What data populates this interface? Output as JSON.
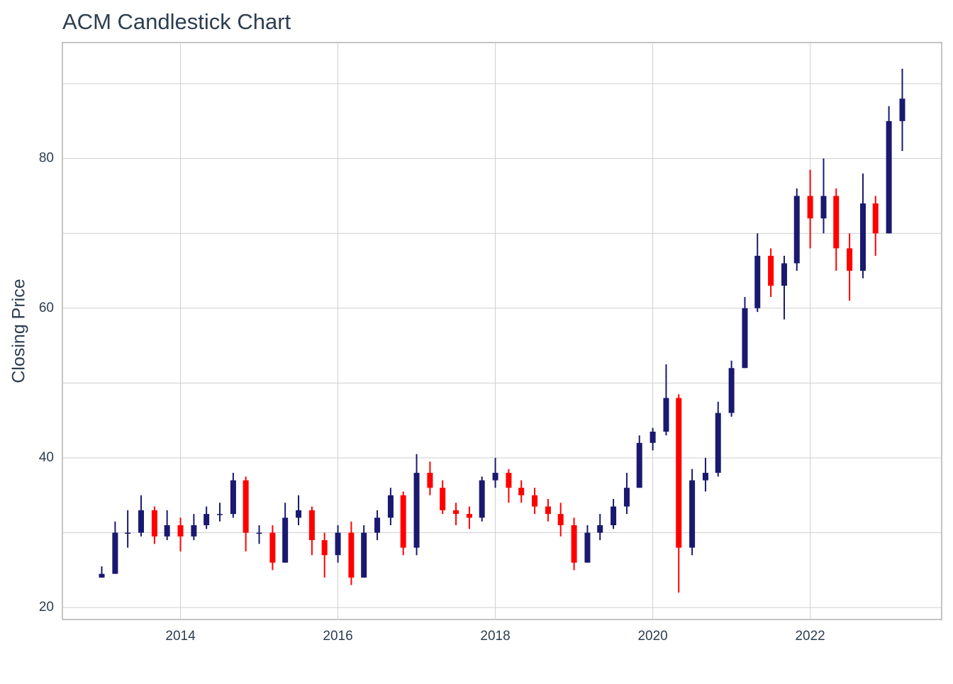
{
  "chart_data": {
    "type": "candlestick",
    "title": "ACM Candlestick Chart",
    "y_label": "Closing Price",
    "up_color": "#191970",
    "down_color": "#ff0000",
    "grid": true,
    "xlim": [
      2012.5,
      2023.67
    ],
    "xticks": [
      2014,
      2016,
      2018,
      2020,
      2022
    ],
    "ylim": [
      18.4,
      95.5
    ],
    "yticks": [
      20,
      40,
      60,
      80
    ],
    "yminor": [
      30,
      50,
      70,
      90
    ],
    "x": [
      2013.0,
      2013.17,
      2013.33,
      2013.5,
      2013.67,
      2013.83,
      2014.0,
      2014.17,
      2014.33,
      2014.5,
      2014.67,
      2014.83,
      2015.0,
      2015.17,
      2015.33,
      2015.5,
      2015.67,
      2015.83,
      2016.0,
      2016.17,
      2016.33,
      2016.5,
      2016.67,
      2016.83,
      2017.0,
      2017.17,
      2017.33,
      2017.5,
      2017.67,
      2017.83,
      2018.0,
      2018.17,
      2018.33,
      2018.5,
      2018.67,
      2018.83,
      2019.0,
      2019.17,
      2019.33,
      2019.5,
      2019.67,
      2019.83,
      2020.0,
      2020.17,
      2020.33,
      2020.5,
      2020.67,
      2020.83,
      2021.0,
      2021.17,
      2021.33,
      2021.5,
      2021.67,
      2021.83,
      2022.0,
      2022.17,
      2022.33,
      2022.5,
      2022.67,
      2022.83,
      2023.0,
      2023.17
    ],
    "open": [
      24,
      24.5,
      30,
      30,
      33,
      29.5,
      31,
      29.5,
      31,
      32.5,
      32.5,
      37,
      30,
      30,
      26,
      32,
      33,
      29,
      27,
      30,
      24,
      30,
      32,
      35,
      28,
      38,
      36,
      33,
      32.5,
      32,
      37,
      38,
      36,
      35,
      33.5,
      32.5,
      31,
      26,
      30,
      31,
      33.5,
      36,
      42,
      43.5,
      48,
      28,
      37,
      38,
      46,
      52,
      60,
      67,
      63,
      66,
      75,
      72,
      75,
      68,
      65,
      74,
      70,
      85
    ],
    "high": [
      25.5,
      31.5,
      33,
      35,
      33.5,
      33,
      32,
      32.5,
      33.5,
      34,
      38,
      37.5,
      31,
      31,
      34,
      35,
      33.5,
      30,
      31,
      31.5,
      31,
      33,
      36,
      35.5,
      40.5,
      39.5,
      37,
      34,
      33.5,
      37.5,
      40,
      38.5,
      37,
      36,
      34.5,
      34,
      32,
      31,
      32.5,
      34.5,
      38,
      43,
      44,
      52.5,
      48.5,
      38.5,
      40,
      47.5,
      53,
      61.5,
      70,
      68,
      67,
      76,
      78.5,
      80,
      76,
      70,
      78,
      75,
      87,
      92
    ],
    "low": [
      24,
      24.5,
      28,
      29.5,
      28.5,
      29,
      27.5,
      29,
      30.5,
      31.5,
      32,
      27.5,
      28.5,
      25,
      26,
      31,
      27,
      24,
      26,
      23,
      24,
      29,
      31,
      27,
      27,
      35,
      32.5,
      31,
      30.5,
      31.5,
      36,
      34,
      34,
      32.5,
      31.5,
      29.5,
      25,
      26,
      29,
      30.5,
      32.5,
      36,
      41,
      43,
      22,
      27,
      35.5,
      37.5,
      45.5,
      52,
      59.5,
      61.5,
      58.5,
      65,
      68,
      70,
      65,
      61,
      64,
      67,
      70,
      81
    ],
    "close": [
      24.5,
      30,
      30,
      33,
      29.5,
      31,
      29.5,
      31,
      32.5,
      32.5,
      37,
      30,
      30,
      26,
      32,
      33,
      29,
      27,
      30,
      24,
      30,
      32,
      35,
      28,
      38,
      36,
      33,
      32.5,
      32,
      37,
      38,
      36,
      35,
      33.5,
      32.5,
      31,
      26,
      30,
      31,
      33.5,
      36,
      42,
      43.5,
      48,
      28,
      37,
      38,
      46,
      52,
      60,
      67,
      63,
      66,
      75,
      72,
      75,
      68,
      65,
      74,
      70,
      85,
      88
    ]
  }
}
